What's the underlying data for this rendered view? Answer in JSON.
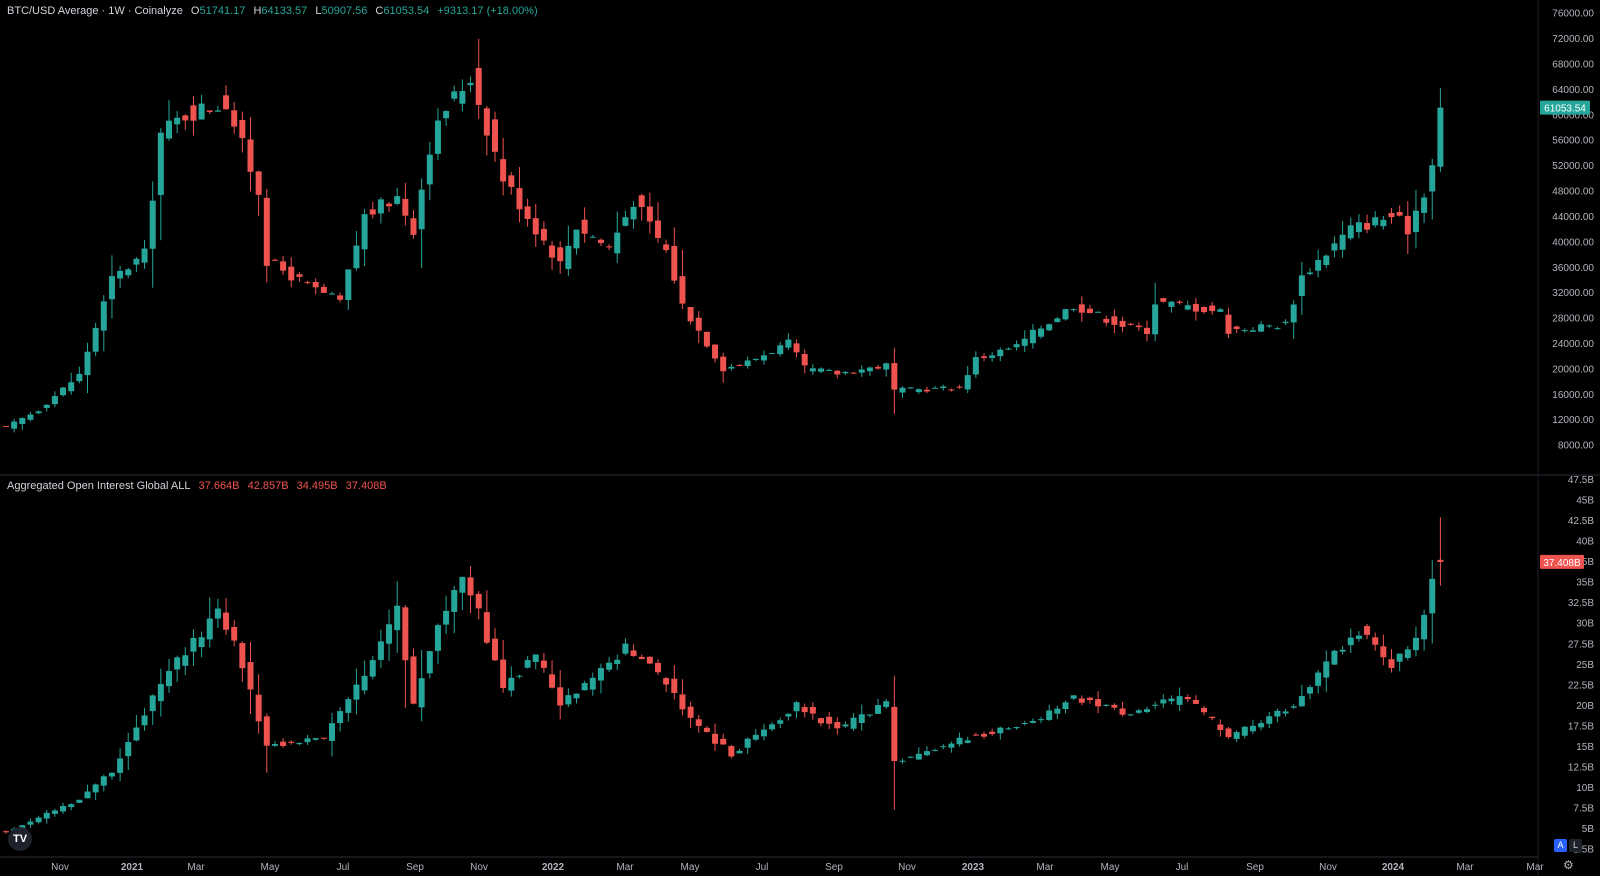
{
  "price_pane": {
    "symbol": "BTC/USD Average · 1W · Coinalyze",
    "o_label": "O",
    "o_value": "51741.17",
    "h_label": "H",
    "h_value": "64133.57",
    "l_label": "L",
    "l_value": "50907.56",
    "c_label": "C",
    "c_value": "61053.54",
    "change": "+9313.17 (+18.00%)",
    "last_price": "61053.54",
    "axis_ticks": [
      "76000.00",
      "72000.00",
      "68000.00",
      "64000.00",
      "60000.00",
      "56000.00",
      "52000.00",
      "48000.00",
      "44000.00",
      "40000.00",
      "36000.00",
      "32000.00",
      "28000.00",
      "24000.00",
      "20000.00",
      "16000.00",
      "12000.00",
      "8000.00"
    ]
  },
  "oi_pane": {
    "title": "Aggregated Open Interest Global ALL",
    "o_value": "37.664B",
    "h_value": "42.857B",
    "l_value": "34.495B",
    "c_value": "37.408B",
    "last_value": "37.408B",
    "axis_ticks": [
      "47.5B",
      "45B",
      "42.5B",
      "40B",
      "37.5B",
      "35B",
      "32.5B",
      "30B",
      "27.5B",
      "25B",
      "22.5B",
      "20B",
      "17.5B",
      "15B",
      "12.5B",
      "10B",
      "7.5B",
      "5B",
      "2.5B"
    ]
  },
  "time_axis": {
    "labels": [
      "Nov",
      "2021",
      "Mar",
      "May",
      "Jul",
      "Sep",
      "Nov",
      "2022",
      "Mar",
      "May",
      "Jul",
      "Sep",
      "Nov",
      "2023",
      "Mar",
      "May",
      "Jul",
      "Sep",
      "Nov",
      "2024",
      "Mar",
      "Mar"
    ]
  },
  "controls": {
    "auto_label": "A",
    "log_label": "L",
    "logo": "TV"
  },
  "colors": {
    "up": "#26a69a",
    "down": "#ef5350",
    "background": "#000000",
    "divider": "#2a2e39"
  },
  "chart_data": [
    {
      "type": "candlestick",
      "title": "BTC/USD Average · 1W · Coinalyze",
      "interval": "1W",
      "x_range": [
        "2020-10-05",
        "2024-02-26"
      ],
      "ylim": [
        4000,
        78000
      ],
      "anchors": [
        {
          "date": "2020-10-05",
          "close": 10700
        },
        {
          "date": "2020-11-02",
          "close": 13500
        },
        {
          "date": "2020-12-07",
          "close": 19000
        },
        {
          "date": "2021-01-04",
          "close": 34000
        },
        {
          "date": "2021-02-01",
          "close": 38000
        },
        {
          "date": "2021-02-15",
          "close": 57000
        },
        {
          "date": "2021-03-08",
          "close": 60000
        },
        {
          "date": "2021-04-12",
          "close": 62000
        },
        {
          "date": "2021-05-10",
          "close": 48000
        },
        {
          "date": "2021-05-17",
          "close": 37000
        },
        {
          "date": "2021-06-21",
          "close": 33000
        },
        {
          "date": "2021-07-19",
          "close": 30500
        },
        {
          "date": "2021-08-09",
          "close": 44000
        },
        {
          "date": "2021-09-06",
          "close": 47000
        },
        {
          "date": "2021-09-20",
          "close": 42000
        },
        {
          "date": "2021-10-04",
          "close": 55000
        },
        {
          "date": "2021-10-18",
          "close": 61000
        },
        {
          "date": "2021-11-08",
          "close": 66000
        },
        {
          "date": "2021-12-06",
          "close": 50000
        },
        {
          "date": "2022-01-03",
          "close": 42000
        },
        {
          "date": "2022-01-24",
          "close": 36500
        },
        {
          "date": "2022-02-07",
          "close": 42500
        },
        {
          "date": "2022-03-07",
          "close": 39000
        },
        {
          "date": "2022-03-28",
          "close": 46500
        },
        {
          "date": "2022-04-25",
          "close": 38500
        },
        {
          "date": "2022-05-09",
          "close": 30000
        },
        {
          "date": "2022-06-13",
          "close": 20000
        },
        {
          "date": "2022-07-04",
          "close": 21000
        },
        {
          "date": "2022-08-08",
          "close": 24000
        },
        {
          "date": "2022-08-22",
          "close": 20000
        },
        {
          "date": "2022-09-19",
          "close": 19200
        },
        {
          "date": "2022-10-31",
          "close": 20500
        },
        {
          "date": "2022-11-07",
          "close": 16500
        },
        {
          "date": "2023-01-02",
          "close": 17000
        },
        {
          "date": "2023-01-16",
          "close": 21500
        },
        {
          "date": "2023-02-20",
          "close": 23500
        },
        {
          "date": "2023-03-13",
          "close": 26500
        },
        {
          "date": "2023-04-10",
          "close": 30000
        },
        {
          "date": "2023-05-22",
          "close": 26800
        },
        {
          "date": "2023-06-12",
          "close": 26000
        },
        {
          "date": "2023-06-19",
          "close": 30500
        },
        {
          "date": "2023-08-14",
          "close": 29000
        },
        {
          "date": "2023-08-21",
          "close": 26000
        },
        {
          "date": "2023-10-09",
          "close": 27000
        },
        {
          "date": "2023-10-23",
          "close": 34500
        },
        {
          "date": "2023-12-04",
          "close": 42000
        },
        {
          "date": "2024-01-08",
          "close": 44000
        },
        {
          "date": "2024-01-22",
          "close": 42000
        },
        {
          "date": "2024-02-05",
          "close": 48000
        },
        {
          "date": "2024-02-12",
          "close": 52000
        },
        {
          "date": "2024-02-19",
          "close": 51741
        },
        {
          "date": "2024-02-26",
          "close": 61053
        }
      ],
      "last_candle": {
        "open": 51741.17,
        "high": 64133.57,
        "low": 50907.56,
        "close": 61053.54
      }
    },
    {
      "type": "candlestick",
      "title": "Aggregated Open Interest Global ALL",
      "units": "B",
      "ylim": [
        0,
        48
      ],
      "anchors": [
        {
          "date": "2020-10-05",
          "close": 4.5
        },
        {
          "date": "2020-12-07",
          "close": 8.5
        },
        {
          "date": "2021-01-04",
          "close": 12
        },
        {
          "date": "2021-02-01",
          "close": 19
        },
        {
          "date": "2021-02-22",
          "close": 24
        },
        {
          "date": "2021-04-05",
          "close": 31
        },
        {
          "date": "2021-04-19",
          "close": 28
        },
        {
          "date": "2021-05-17",
          "close": 15
        },
        {
          "date": "2021-07-05",
          "close": 16
        },
        {
          "date": "2021-08-16",
          "close": 25
        },
        {
          "date": "2021-09-06",
          "close": 32
        },
        {
          "date": "2021-09-20",
          "close": 20
        },
        {
          "date": "2021-10-11",
          "close": 30
        },
        {
          "date": "2021-11-01",
          "close": 36
        },
        {
          "date": "2021-11-15",
          "close": 31
        },
        {
          "date": "2021-12-06",
          "close": 22
        },
        {
          "date": "2022-01-03",
          "close": 26
        },
        {
          "date": "2022-01-24",
          "close": 20
        },
        {
          "date": "2022-02-21",
          "close": 23
        },
        {
          "date": "2022-03-21",
          "close": 27
        },
        {
          "date": "2022-04-25",
          "close": 23
        },
        {
          "date": "2022-05-16",
          "close": 18
        },
        {
          "date": "2022-06-20",
          "close": 14
        },
        {
          "date": "2022-08-15",
          "close": 20
        },
        {
          "date": "2022-09-19",
          "close": 17
        },
        {
          "date": "2022-10-31",
          "close": 20
        },
        {
          "date": "2022-11-07",
          "close": 13
        },
        {
          "date": "2023-01-09",
          "close": 16
        },
        {
          "date": "2023-03-06",
          "close": 18
        },
        {
          "date": "2023-04-10",
          "close": 21
        },
        {
          "date": "2023-05-22",
          "close": 19
        },
        {
          "date": "2023-07-17",
          "close": 21
        },
        {
          "date": "2023-08-21",
          "close": 16
        },
        {
          "date": "2023-10-16",
          "close": 20
        },
        {
          "date": "2023-11-13",
          "close": 25
        },
        {
          "date": "2023-12-11",
          "close": 29
        },
        {
          "date": "2024-01-08",
          "close": 25
        },
        {
          "date": "2024-01-29",
          "close": 28
        },
        {
          "date": "2024-02-12",
          "close": 35
        },
        {
          "date": "2024-02-19",
          "close": 37.664
        },
        {
          "date": "2024-02-26",
          "close": 37.408
        }
      ],
      "last_candle": {
        "open": 37.664,
        "high": 42.857,
        "low": 34.495,
        "close": 37.408
      }
    }
  ]
}
